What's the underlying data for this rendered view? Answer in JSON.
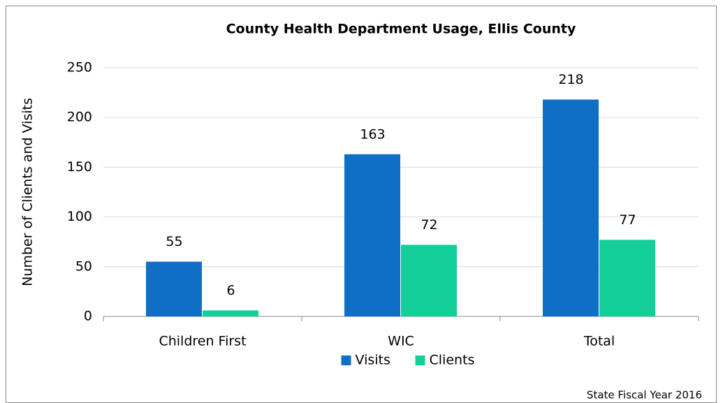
{
  "chart_data": {
    "type": "bar",
    "title": "County Health Department Usage, Ellis County",
    "ylabel": "Number of Clients and Visits",
    "categories": [
      "Children First",
      "WIC",
      "Total"
    ],
    "series": [
      {
        "name": "Visits",
        "color": "#0f6fc6",
        "values": [
          55,
          163,
          218
        ]
      },
      {
        "name": "Clients",
        "color": "#14cf9a",
        "values": [
          6,
          72,
          77
        ]
      }
    ],
    "ylim": [
      0,
      250
    ],
    "yticks": [
      0,
      50,
      100,
      150,
      200,
      250
    ],
    "grid": true,
    "legend": "bottom",
    "note": "State Fiscal Year 2016"
  }
}
